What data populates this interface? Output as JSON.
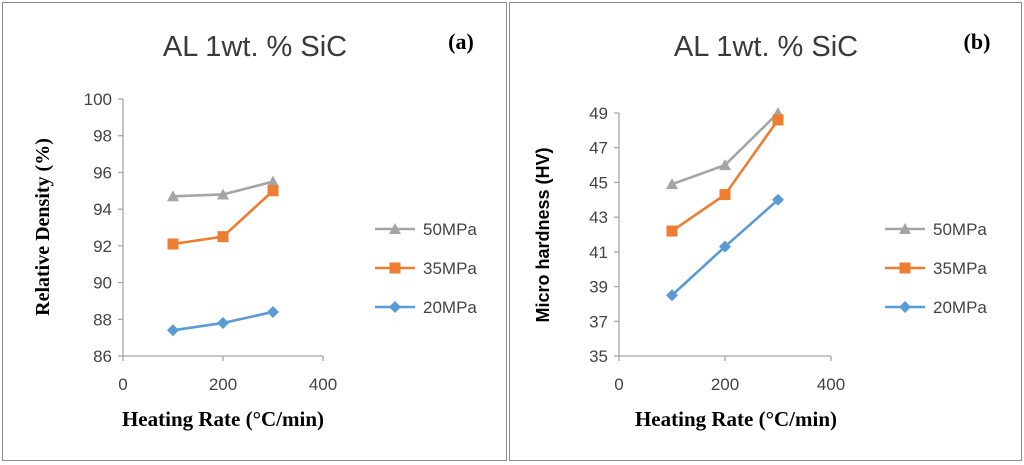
{
  "chart_data": [
    {
      "type": "line",
      "panel_label": "(a)",
      "title": "AL 1wt. % SiC",
      "xlabel": "Heating Rate (°C/min)",
      "ylabel": "Relative Density (%)",
      "xlim": [
        0,
        400
      ],
      "ylim": [
        86,
        100
      ],
      "xticks": [
        0,
        200,
        400
      ],
      "yticks": [
        86,
        88,
        90,
        92,
        94,
        96,
        98,
        100
      ],
      "grid": false,
      "legend_position": "right",
      "series": [
        {
          "name": "50MPa",
          "color": "#a5a5a5",
          "marker": "triangle",
          "x": [
            100,
            200,
            300
          ],
          "y": [
            94.7,
            94.8,
            95.5
          ]
        },
        {
          "name": "35MPa",
          "color": "#ed7d31",
          "marker": "square",
          "x": [
            100,
            200,
            300
          ],
          "y": [
            92.1,
            92.5,
            95.0
          ]
        },
        {
          "name": "20MPa",
          "color": "#5b9bd5",
          "marker": "diamond",
          "x": [
            100,
            200,
            300
          ],
          "y": [
            87.4,
            87.8,
            88.4
          ]
        }
      ]
    },
    {
      "type": "line",
      "panel_label": "(b)",
      "title": "AL 1wt. % SiC",
      "xlabel": "Heating Rate (°C/min)",
      "ylabel": "Micro hardness (HV)",
      "xlim": [
        0,
        400
      ],
      "ylim": [
        35,
        49
      ],
      "xticks": [
        0,
        200,
        400
      ],
      "yticks": [
        35,
        37,
        39,
        41,
        43,
        45,
        47,
        49
      ],
      "grid": false,
      "legend_position": "right",
      "series": [
        {
          "name": "50MPa",
          "color": "#a5a5a5",
          "marker": "triangle",
          "x": [
            100,
            200,
            300
          ],
          "y": [
            44.9,
            46.0,
            49.0
          ]
        },
        {
          "name": "35MPa",
          "color": "#ed7d31",
          "marker": "square",
          "x": [
            100,
            200,
            300
          ],
          "y": [
            42.2,
            44.3,
            48.6
          ]
        },
        {
          "name": "20MPa",
          "color": "#5b9bd5",
          "marker": "diamond",
          "x": [
            100,
            200,
            300
          ],
          "y": [
            38.5,
            41.3,
            44.0
          ]
        }
      ]
    }
  ]
}
